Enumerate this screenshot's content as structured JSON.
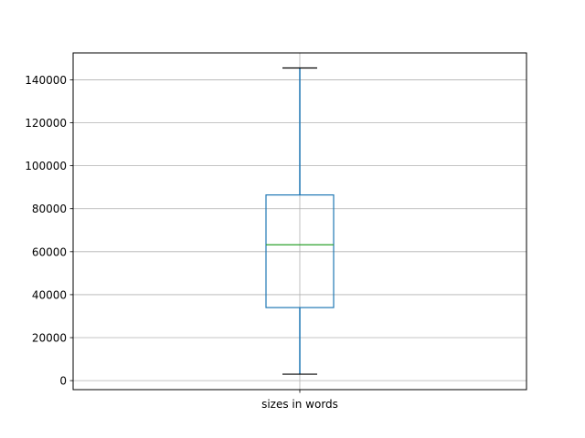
{
  "chart_data": {
    "type": "boxplot",
    "categories": [
      "sizes in words"
    ],
    "boxes": [
      {
        "category": "sizes in words",
        "whisker_low": 3000,
        "q1": 34000,
        "median": 63200,
        "q3": 86400,
        "whisker_high": 145500
      }
    ],
    "xlabel": "",
    "ylabel": "",
    "ylim": [
      -4200,
      152500
    ],
    "yticks": [
      0,
      20000,
      40000,
      60000,
      80000,
      100000,
      120000,
      140000
    ],
    "ytick_labels": [
      "0",
      "20000",
      "40000",
      "60000",
      "80000",
      "100000",
      "120000",
      "140000"
    ],
    "grid": true,
    "colors": {
      "box": "#1f77b4",
      "median": "#2ca02c",
      "caps": "#000000",
      "grid": "#b0b0b0"
    }
  }
}
